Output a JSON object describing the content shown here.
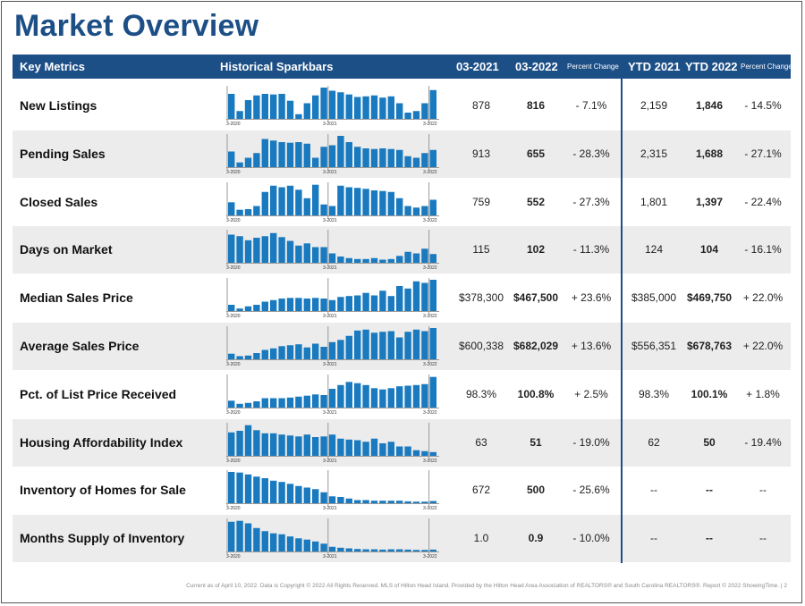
{
  "title": "Market Overview",
  "header": {
    "key_metrics": "Key Metrics",
    "sparkbars": "Historical Sparkbars",
    "col_2021": "03-2021",
    "col_2022": "03-2022",
    "pct_change": "Percent Change",
    "ytd_2021": "YTD 2021",
    "ytd_2022": "YTD 2022",
    "ytd_pct_change": "Percent Change"
  },
  "spark_ticks": [
    "3-2020",
    "3-2021",
    "3-2022"
  ],
  "rows": [
    {
      "label": "New Listings",
      "v2021": "878",
      "v2022": "816",
      "pct": "- 7.1%",
      "ytd2021": "2,159",
      "ytd2022": "1,846",
      "ytdpct": "- 14.5%",
      "bars": [
        0.8,
        0.25,
        0.6,
        0.75,
        0.8,
        0.78,
        0.8,
        0.58,
        0.15,
        0.5,
        0.75,
        1.0,
        0.9,
        0.85,
        0.78,
        0.7,
        0.72,
        0.75,
        0.68,
        0.72,
        0.5,
        0.2,
        0.25,
        0.5,
        0.92
      ]
    },
    {
      "label": "Pending Sales",
      "v2021": "913",
      "v2022": "655",
      "pct": "- 28.3%",
      "ytd2021": "2,315",
      "ytd2022": "1,688",
      "ytdpct": "- 27.1%",
      "bars": [
        0.5,
        0.15,
        0.3,
        0.45,
        0.9,
        0.85,
        0.8,
        0.78,
        0.8,
        0.75,
        0.3,
        0.65,
        0.7,
        1.0,
        0.8,
        0.65,
        0.6,
        0.58,
        0.6,
        0.58,
        0.55,
        0.35,
        0.3,
        0.45,
        0.55
      ]
    },
    {
      "label": "Closed Sales",
      "v2021": "759",
      "v2022": "552",
      "pct": "- 27.3%",
      "ytd2021": "1,801",
      "ytd2022": "1,397",
      "ytdpct": "- 22.4%",
      "bars": [
        0.42,
        0.18,
        0.2,
        0.3,
        0.75,
        0.95,
        0.9,
        0.95,
        0.82,
        0.55,
        0.98,
        0.35,
        0.3,
        0.95,
        0.9,
        0.88,
        0.85,
        0.8,
        0.78,
        0.75,
        0.55,
        0.3,
        0.25,
        0.3,
        0.5
      ]
    },
    {
      "label": "Days on Market",
      "v2021": "115",
      "v2022": "102",
      "pct": "- 11.3%",
      "ytd2021": "124",
      "ytd2022": "104",
      "ytdpct": "- 16.1%",
      "bars": [
        0.9,
        0.85,
        0.72,
        0.8,
        0.85,
        0.95,
        0.82,
        0.7,
        0.55,
        0.62,
        0.5,
        0.5,
        0.3,
        0.2,
        0.15,
        0.12,
        0.12,
        0.15,
        0.1,
        0.12,
        0.22,
        0.35,
        0.3,
        0.45,
        0.28
      ]
    },
    {
      "label": "Median Sales Price",
      "v2021": "$378,300",
      "v2022": "$467,500",
      "pct": "+ 23.6%",
      "ytd2021": "$385,000",
      "ytd2022": "$469,750",
      "ytdpct": "+ 22.0%",
      "bars": [
        0.2,
        0.08,
        0.15,
        0.2,
        0.3,
        0.35,
        0.4,
        0.42,
        0.42,
        0.4,
        0.42,
        0.4,
        0.35,
        0.45,
        0.48,
        0.5,
        0.58,
        0.5,
        0.65,
        0.48,
        0.8,
        0.72,
        0.95,
        0.9,
        1.0
      ]
    },
    {
      "label": "Average Sales Price",
      "v2021": "$600,338",
      "v2022": "$682,029",
      "pct": "+ 13.6%",
      "ytd2021": "$556,351",
      "ytd2022": "$678,763",
      "ytdpct": "+ 22.0%",
      "bars": [
        0.18,
        0.1,
        0.12,
        0.2,
        0.3,
        0.35,
        0.42,
        0.45,
        0.48,
        0.38,
        0.5,
        0.4,
        0.55,
        0.62,
        0.75,
        0.92,
        0.95,
        0.85,
        0.88,
        0.9,
        0.7,
        0.88,
        0.95,
        0.9,
        1.0
      ]
    },
    {
      "label": "Pct. of List Price Received",
      "v2021": "98.3%",
      "v2022": "100.8%",
      "pct": "+ 2.5%",
      "ytd2021": "98.3%",
      "ytd2022": "100.1%",
      "ytdpct": "+ 1.8%",
      "bars": [
        0.22,
        0.12,
        0.15,
        0.2,
        0.3,
        0.3,
        0.3,
        0.32,
        0.35,
        0.38,
        0.42,
        0.4,
        0.6,
        0.72,
        0.82,
        0.78,
        0.72,
        0.62,
        0.58,
        0.62,
        0.68,
        0.7,
        0.72,
        0.75,
        0.98
      ]
    },
    {
      "label": "Housing Affordability Index",
      "v2021": "63",
      "v2022": "51",
      "pct": "- 19.0%",
      "ytd2021": "62",
      "ytd2022": "50",
      "ytdpct": "- 19.4%",
      "bars": [
        0.75,
        0.8,
        0.98,
        0.82,
        0.72,
        0.72,
        0.68,
        0.65,
        0.62,
        0.68,
        0.6,
        0.62,
        0.68,
        0.55,
        0.52,
        0.5,
        0.45,
        0.55,
        0.4,
        0.45,
        0.3,
        0.3,
        0.18,
        0.15,
        0.12
      ]
    },
    {
      "label": "Inventory of Homes for Sale",
      "v2021": "672",
      "v2022": "500",
      "pct": "- 25.6%",
      "ytd2021": "--",
      "ytd2022": "--",
      "ytdpct": "--",
      "bars": [
        1.0,
        0.98,
        0.92,
        0.85,
        0.8,
        0.72,
        0.68,
        0.62,
        0.55,
        0.5,
        0.45,
        0.35,
        0.22,
        0.2,
        0.15,
        0.1,
        0.1,
        0.08,
        0.08,
        0.08,
        0.08,
        0.06,
        0.05,
        0.05,
        0.07
      ]
    },
    {
      "label": "Months Supply of Inventory",
      "v2021": "1.0",
      "v2022": "0.9",
      "pct": "- 10.0%",
      "ytd2021": "--",
      "ytd2022": "--",
      "ytdpct": "--",
      "bars": [
        0.95,
        0.98,
        0.9,
        0.75,
        0.65,
        0.58,
        0.55,
        0.48,
        0.42,
        0.38,
        0.32,
        0.25,
        0.15,
        0.12,
        0.1,
        0.08,
        0.07,
        0.07,
        0.06,
        0.07,
        0.07,
        0.06,
        0.05,
        0.05,
        0.06
      ]
    }
  ],
  "footer": "Current as of April 10, 2022. Data is Copyright © 2022 All Rights Reserved. MLS of Hilton Head Island. Provided by the Hilton Head Area Association of REALTORS® and South Carolina REALTORS®. Report © 2022 ShowingTime.  |  2",
  "colors": {
    "brand_blue": "#1d4f87",
    "bar_blue": "#1a7abf",
    "row_shade": "#ececec"
  }
}
